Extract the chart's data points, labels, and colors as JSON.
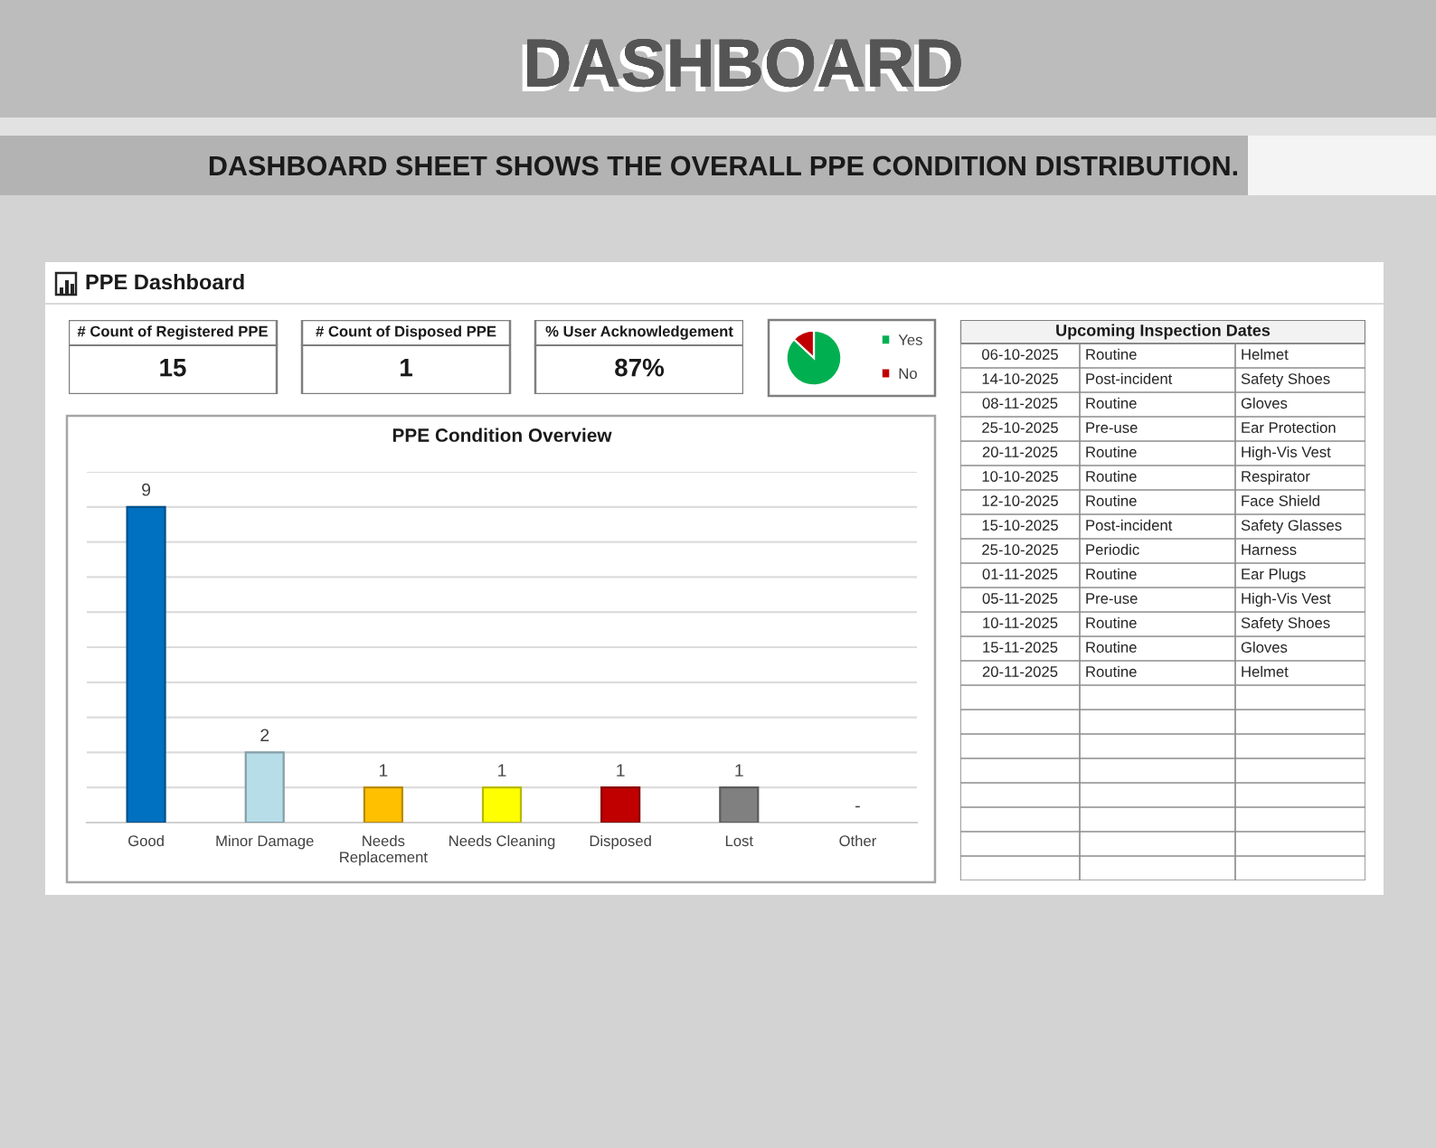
{
  "chart_data": [
    {
      "type": "other",
      "title": "DASHBOARD",
      "subtitle": "DASHBOARD SHEET SHOWS THE OVERALL PPE CONDITION DISTRIBUTION.",
      "annotations": [
        "PPE Dashboard"
      ]
    },
    {
      "type": "other",
      "categories": [
        "# Count of Registered PPE",
        "# Count of Disposed PPE",
        "% User Acknowledgement"
      ],
      "value_labels": [
        "15",
        "1",
        "87%"
      ]
    },
    {
      "type": "pie",
      "categories": [
        "Yes",
        "No"
      ],
      "values": [
        87,
        13
      ],
      "colors": [
        "#00b050",
        "#c00000"
      ],
      "legend": "right"
    },
    {
      "type": "bar",
      "title": "PPE Condition Overview",
      "categories": [
        "Good",
        "Minor Damage",
        "Needs Replacement",
        "Needs Cleaning",
        "Disposed",
        "Lost",
        "Other"
      ],
      "values": [
        9,
        2,
        1,
        1,
        1,
        1,
        0
      ],
      "colors": [
        "#0070c0",
        "#b7dde8",
        "#ffc000",
        "#ffff00",
        "#c00000",
        "#808080",
        null
      ],
      "value_labels": [
        "9",
        "2",
        "1",
        "1",
        "1",
        "1",
        "-"
      ],
      "ylim": [
        0,
        10
      ],
      "yticks": [
        {
          "value": 0,
          "label": null
        },
        {
          "value": 1,
          "label": null
        },
        {
          "value": 2,
          "label": null
        },
        {
          "value": 3,
          "label": null
        },
        {
          "value": 4,
          "label": null
        },
        {
          "value": 5,
          "label": null
        },
        {
          "value": 6,
          "label": null
        },
        {
          "value": 7,
          "label": null
        },
        {
          "value": 8,
          "label": null
        },
        {
          "value": 9,
          "label": null
        },
        {
          "value": 10,
          "label": null
        }
      ],
      "grid": "y",
      "tick_labels": "x"
    },
    {
      "type": "other",
      "title": "Upcoming Inspection Dates",
      "cell_labels": [
        [
          "06-10-2025",
          "Routine",
          "Helmet"
        ],
        [
          "14-10-2025",
          "Post-incident",
          "Safety Shoes"
        ],
        [
          "08-11-2025",
          "Routine",
          "Gloves"
        ],
        [
          "25-10-2025",
          "Pre-use",
          "Ear Protection"
        ],
        [
          "20-11-2025",
          "Routine",
          "High-Vis Vest"
        ],
        [
          "10-10-2025",
          "Routine",
          "Respirator"
        ],
        [
          "12-10-2025",
          "Routine",
          "Face Shield"
        ],
        [
          "15-10-2025",
          "Post-incident",
          "Safety Glasses"
        ],
        [
          "25-10-2025",
          "Periodic",
          "Harness"
        ],
        [
          "01-11-2025",
          "Routine",
          "Ear Plugs"
        ],
        [
          "05-11-2025",
          "Pre-use",
          "High-Vis Vest"
        ],
        [
          "10-11-2025",
          "Routine",
          "Safety Shoes"
        ],
        [
          "15-11-2025",
          "Routine",
          "Gloves"
        ],
        [
          "20-11-2025",
          "Routine",
          "Helmet"
        ],
        [
          null,
          null,
          null
        ],
        [
          null,
          null,
          null
        ],
        [
          null,
          null,
          null
        ],
        [
          null,
          null,
          null
        ],
        [
          null,
          null,
          null
        ],
        [
          null,
          null,
          null
        ],
        [
          null,
          null,
          null
        ],
        [
          null,
          null,
          null
        ]
      ]
    }
  ]
}
